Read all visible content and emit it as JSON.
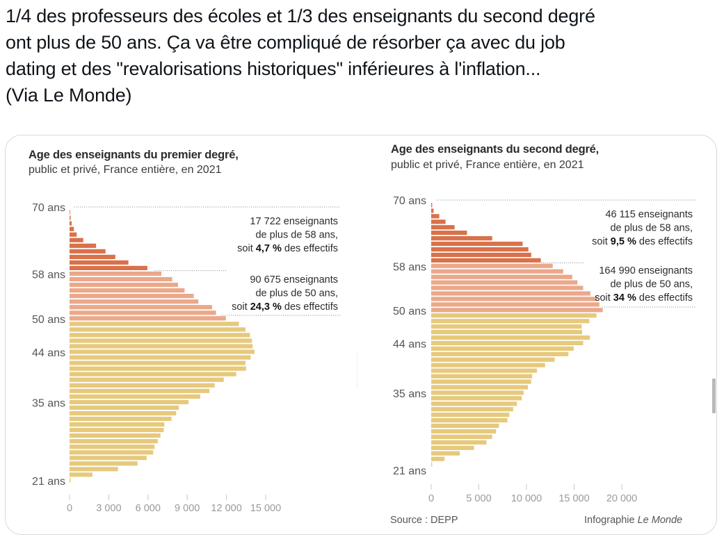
{
  "tweet": {
    "lines": [
      "1/4 des professeurs des écoles et 1/3 des enseignants du second degré",
      "ont plus de 50 ans. Ça va être compliqué de résorber ça avec du job",
      "dating et des \"revalorisations historiques\" inférieures à l'inflation...",
      "(Via Le Monde)"
    ]
  },
  "colors": {
    "over58": "#d9714a",
    "from50to58": "#eba88a",
    "under50": "#e6c97c",
    "axis_text": "#9a9a9a",
    "label_text": "#4a4a4a"
  },
  "footer": {
    "source": "Source : DEPP",
    "credit_prefix": "Infographie ",
    "credit_brand": "Le Monde"
  },
  "chart_data": [
    {
      "type": "bar",
      "orientation": "horizontal",
      "title": "Age des enseignants du premier degré,",
      "subtitle": "public et privé, France entière, en 2021",
      "xlabel": "",
      "ylabel": "",
      "xlim": [
        0,
        15000
      ],
      "xticks": [
        0,
        3000,
        6000,
        9000,
        12000,
        15000
      ],
      "xtick_labels": [
        "0",
        "3 000",
        "6 000",
        "9 000",
        "12 000",
        "15 000"
      ],
      "ylim": [
        21,
        70
      ],
      "yticks": [
        70,
        58,
        50,
        44,
        35,
        21
      ],
      "ytick_labels": [
        "70 ans",
        "58 ans",
        "50 ans",
        "44 ans",
        "35 ans",
        "21 ans"
      ],
      "ages": [
        69,
        68,
        67,
        66,
        65,
        64,
        63,
        62,
        61,
        60,
        59,
        58,
        57,
        56,
        55,
        54,
        53,
        52,
        51,
        50,
        49,
        48,
        47,
        46,
        45,
        44,
        43,
        42,
        41,
        40,
        39,
        38,
        37,
        36,
        35,
        34,
        33,
        32,
        31,
        30,
        29,
        28,
        27,
        26,
        25,
        24,
        23,
        22,
        21
      ],
      "values": [
        30,
        80,
        160,
        330,
        550,
        1050,
        2030,
        2750,
        3500,
        4500,
        5950,
        7020,
        7850,
        8300,
        8800,
        9500,
        9850,
        10900,
        11200,
        11950,
        12950,
        13450,
        13800,
        13950,
        14000,
        14150,
        13850,
        13450,
        13500,
        12750,
        11800,
        11100,
        10700,
        10000,
        9100,
        8350,
        8150,
        7800,
        7250,
        7200,
        6950,
        6750,
        6500,
        6400,
        5900,
        5200,
        3700,
        1750,
        80
      ],
      "groups": [
        {
          "name": "over58",
          "from_age": 59,
          "to_age": 69
        },
        {
          "name": "from50to58",
          "from_age": 50,
          "to_age": 58
        },
        {
          "name": "under50",
          "from_age": 21,
          "to_age": 49
        }
      ],
      "annotations": [
        {
          "count": "17 722 enseignants",
          "line2": "de plus de 58 ans,",
          "pre": "soit ",
          "pct": "4,7 %",
          "post": " des effectifs"
        },
        {
          "count": "90 675 enseignants",
          "line2": "de plus de 50 ans,",
          "pre": "soit ",
          "pct": "24,3 %",
          "post": " des effectifs"
        }
      ]
    },
    {
      "type": "bar",
      "orientation": "horizontal",
      "title": "Age des enseignants du second degré,",
      "subtitle": "public et privé, France entière, en 2021",
      "xlabel": "",
      "ylabel": "",
      "xlim": [
        0,
        20000
      ],
      "xticks": [
        0,
        5000,
        10000,
        15000,
        20000
      ],
      "xtick_labels": [
        "0",
        "5 000",
        "10 000",
        "15 000",
        "20 000"
      ],
      "ylim": [
        21,
        70
      ],
      "yticks": [
        70,
        58,
        50,
        44,
        35,
        21
      ],
      "ytick_labels": [
        "70 ans",
        "58 ans",
        "50 ans",
        "44 ans",
        "35 ans",
        "21 ans"
      ],
      "ages": [
        69,
        68,
        67,
        66,
        65,
        64,
        63,
        62,
        61,
        60,
        59,
        58,
        57,
        56,
        55,
        54,
        53,
        52,
        51,
        50,
        49,
        48,
        47,
        46,
        45,
        44,
        43,
        42,
        41,
        40,
        39,
        38,
        37,
        36,
        35,
        34,
        33,
        32,
        31,
        30,
        29,
        28,
        27,
        26,
        25,
        24,
        23,
        22,
        21
      ],
      "values": [
        100,
        250,
        850,
        1500,
        2450,
        3750,
        6400,
        9600,
        10200,
        10500,
        11500,
        12750,
        13850,
        14800,
        15350,
        15950,
        16700,
        17400,
        17650,
        18000,
        17350,
        16600,
        15800,
        15850,
        16650,
        15950,
        14950,
        14400,
        12950,
        11950,
        11100,
        10600,
        10500,
        10150,
        9700,
        9500,
        9000,
        8600,
        8200,
        8000,
        7100,
        6800,
        6400,
        5800,
        4500,
        3000,
        1400,
        100,
        0
      ],
      "groups": [
        {
          "name": "over58",
          "from_age": 59,
          "to_age": 69
        },
        {
          "name": "from50to58",
          "from_age": 50,
          "to_age": 58
        },
        {
          "name": "under50",
          "from_age": 21,
          "to_age": 49
        }
      ],
      "annotations": [
        {
          "count": "46 115 enseignants",
          "line2": "de plus de 58 ans,",
          "pre": "soit ",
          "pct": "9,5 %",
          "post": " des effectifs"
        },
        {
          "count": "164 990 enseignants",
          "line2": "de plus de 50 ans,",
          "pre": "soit ",
          "pct": "34 %",
          "post": " des effectifs"
        }
      ]
    }
  ]
}
